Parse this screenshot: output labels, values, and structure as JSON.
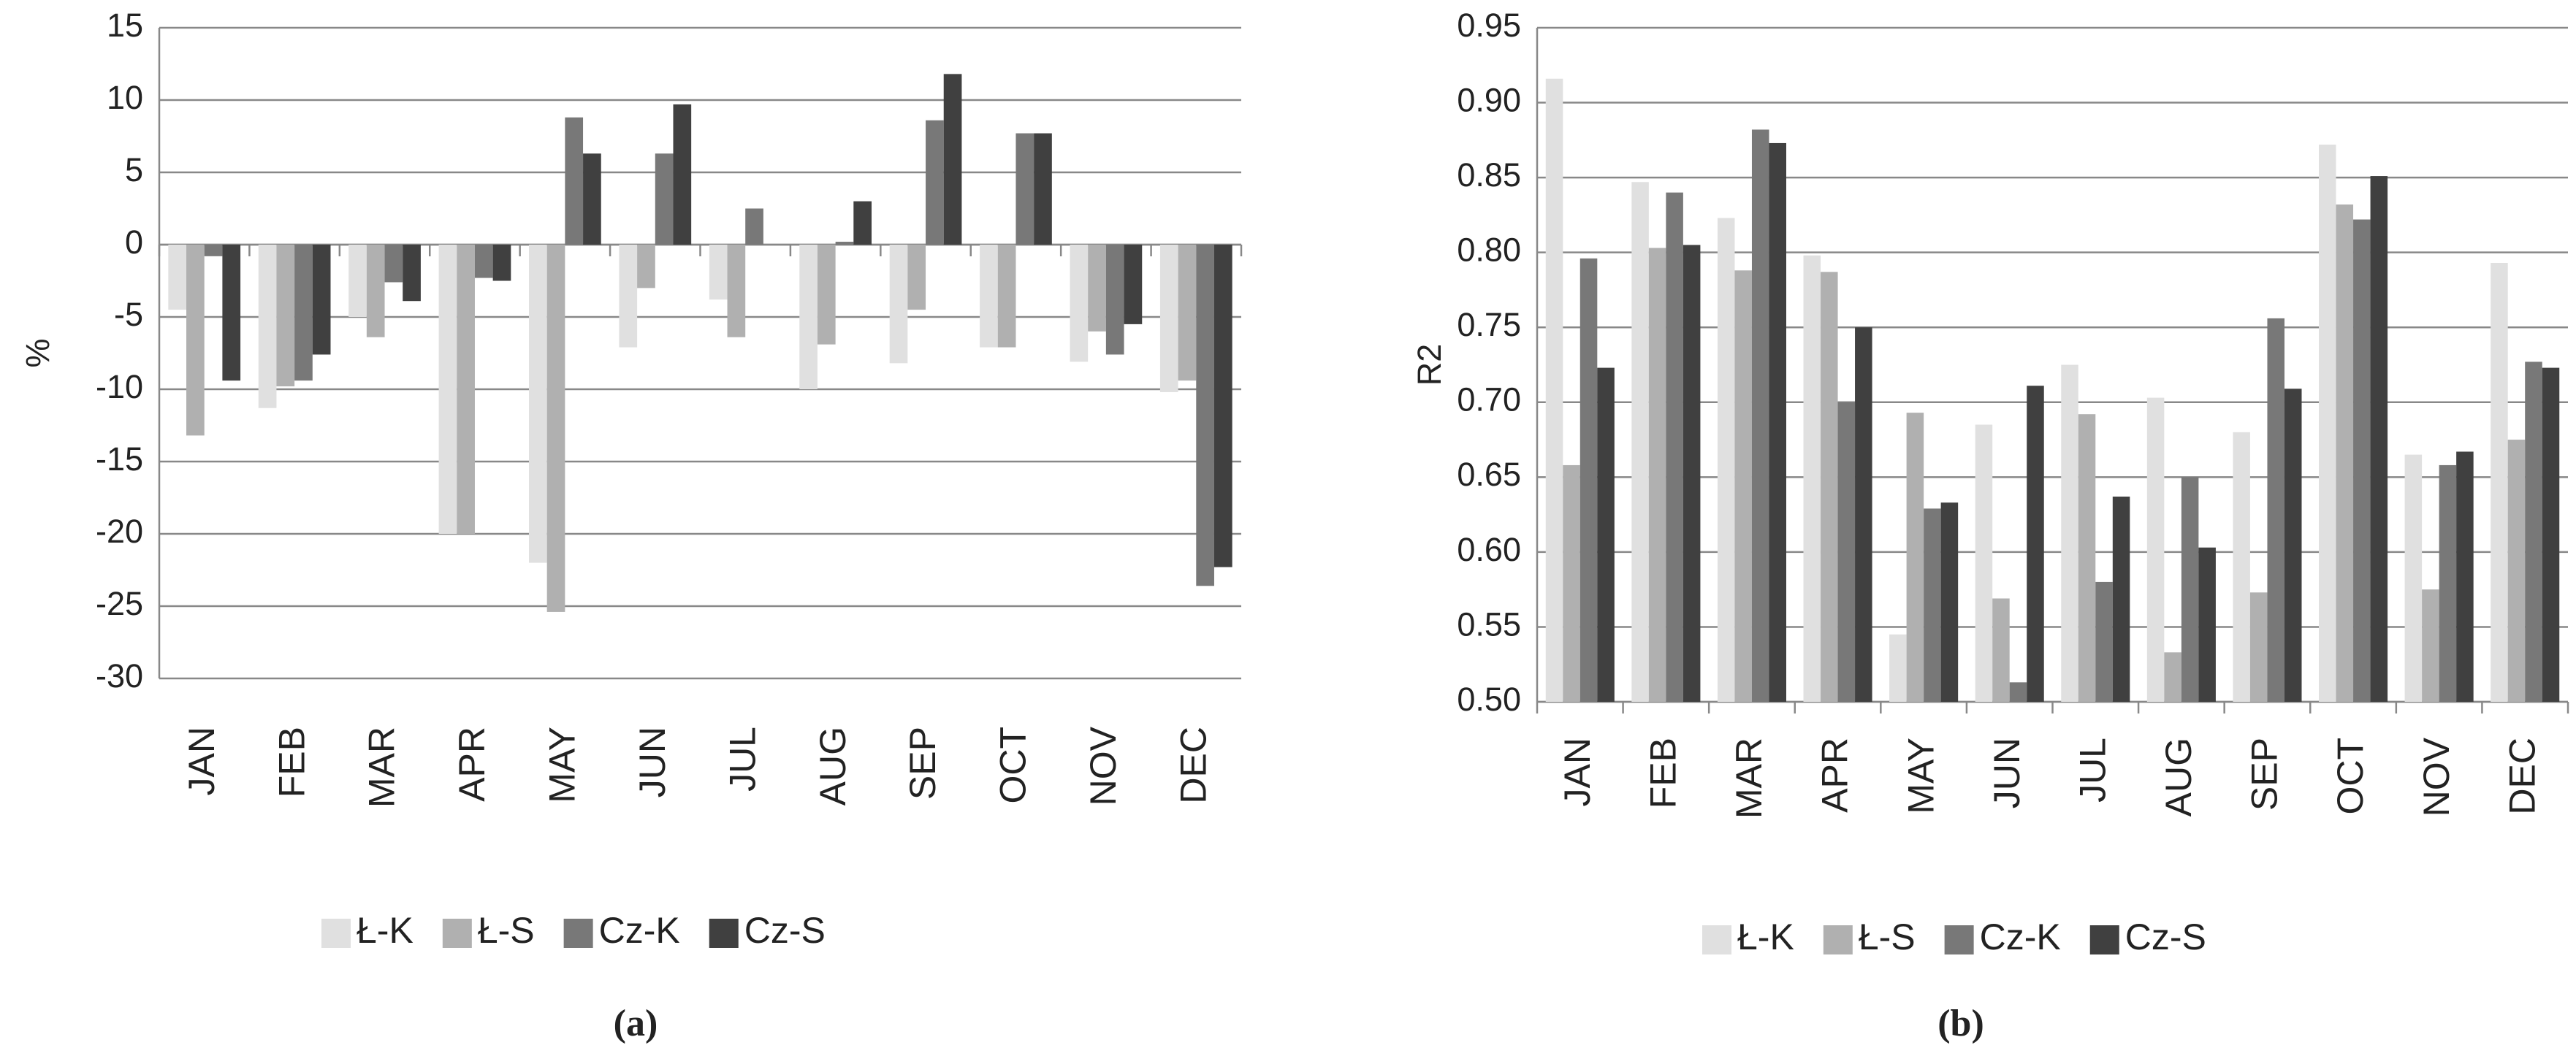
{
  "chart_data": [
    {
      "type": "bar",
      "caption": "(a)",
      "y_label": "%",
      "categories": [
        "JAN",
        "FEB",
        "MAR",
        "APR",
        "MAY",
        "JUN",
        "JUL",
        "AUG",
        "SEP",
        "OCT",
        "NOV",
        "DEC"
      ],
      "series": [
        {
          "name": "Ł-K",
          "color": "#e0e0e0",
          "values": [
            -4.5,
            -11.3,
            -5,
            -20,
            -22,
            -7.1,
            -3.8,
            -10,
            -8.2,
            -7.1,
            -8.1,
            -10.2
          ]
        },
        {
          "name": "Ł-S",
          "color": "#b0b0b0",
          "values": [
            -13.2,
            -9.8,
            -6.4,
            -20,
            -25.4,
            -3,
            -6.4,
            -6.9,
            -4.5,
            -7.1,
            -6,
            -9.4
          ]
        },
        {
          "name": "Cz-K",
          "color": "#787878",
          "values": [
            -0.8,
            -9.4,
            -2.6,
            -2.3,
            8.8,
            6.3,
            2.5,
            0.2,
            8.6,
            7.7,
            -7.6,
            -23.6
          ]
        },
        {
          "name": "Cz-S",
          "color": "#404040",
          "values": [
            -9.4,
            -7.6,
            -3.9,
            -2.5,
            6.3,
            9.7,
            0,
            3,
            11.8,
            7.7,
            -5.5,
            -22.3
          ]
        }
      ],
      "ylim": [
        -30,
        15
      ],
      "yticks": [
        -30,
        -25,
        -20,
        -15,
        -10,
        -5,
        0,
        5,
        10,
        15
      ],
      "grid": true,
      "legend": "bottom"
    },
    {
      "type": "bar",
      "caption": "(b)",
      "y_label": "R2",
      "categories": [
        "JAN",
        "FEB",
        "MAR",
        "APR",
        "MAY",
        "JUN",
        "JUL",
        "AUG",
        "SEP",
        "OCT",
        "NOV",
        "DEC"
      ],
      "series": [
        {
          "name": "Ł-K",
          "color": "#e0e0e0",
          "values": [
            0.916,
            0.847,
            0.823,
            0.798,
            0.545,
            0.685,
            0.725,
            0.703,
            0.68,
            0.872,
            0.665,
            0.793
          ]
        },
        {
          "name": "Ł-S",
          "color": "#b0b0b0",
          "values": [
            0.658,
            0.803,
            0.788,
            0.787,
            0.693,
            0.569,
            0.692,
            0.533,
            0.573,
            0.832,
            0.575,
            0.675
          ]
        },
        {
          "name": "Cz-K",
          "color": "#787878",
          "values": [
            0.796,
            0.84,
            0.882,
            0.7,
            0.629,
            0.513,
            0.58,
            0.65,
            0.756,
            0.822,
            0.658,
            0.727
          ]
        },
        {
          "name": "Cz-S",
          "color": "#404040",
          "values": [
            0.723,
            0.805,
            0.873,
            0.75,
            0.633,
            0.711,
            0.637,
            0.603,
            0.709,
            0.851,
            0.667,
            0.723
          ]
        }
      ],
      "ylim": [
        0.5,
        0.95
      ],
      "yticks": [
        {
          "value": 0.5,
          "label": "0.50"
        },
        {
          "value": 0.55,
          "label": "0.55"
        },
        {
          "value": 0.6,
          "label": "0.60"
        },
        {
          "value": 0.65,
          "label": "0.65"
        },
        {
          "value": 0.7,
          "label": "0.70"
        },
        {
          "value": 0.75,
          "label": "0.75"
        },
        {
          "value": 0.8,
          "label": "0.80"
        },
        {
          "value": 0.85,
          "label": "0.85"
        },
        {
          "value": 0.9,
          "label": "0.90"
        },
        {
          "value": 0.95,
          "label": "0.95"
        }
      ],
      "grid": true,
      "legend": "bottom"
    }
  ]
}
